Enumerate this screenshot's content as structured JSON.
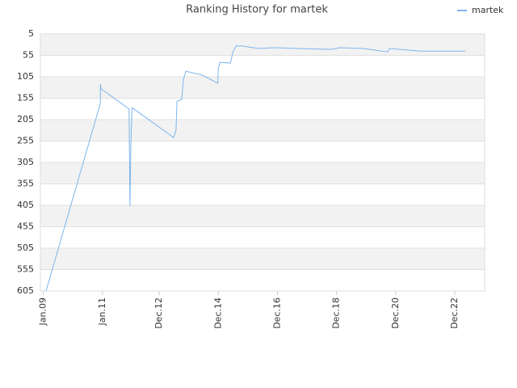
{
  "chart_data": {
    "type": "line",
    "title": "Ranking History for martek",
    "x": [
      2009.09,
      2010.93,
      2010.93,
      2010.95,
      2011.9,
      2011.93,
      2011.96,
      2012.0,
      2013.41,
      2013.49,
      2013.52,
      2013.68,
      2013.74,
      2013.82,
      2014.37,
      2014.9,
      2014.92,
      2014.98,
      2015.33,
      2015.41,
      2015.52,
      2015.73,
      2016.28,
      2016.82,
      2017.64,
      2018.74,
      2019.01,
      2019.83,
      2020.65,
      2020.71,
      2021.75,
      2023.28
    ],
    "series": [
      {
        "name": "martek",
        "color": "#7cb5ec",
        "values": [
          605,
          167,
          122,
          133,
          180,
          407,
          265,
          177,
          247,
          228,
          162,
          158,
          111,
          92,
          101,
          120,
          84,
          71,
          73,
          48,
          33,
          33,
          39,
          37,
          39,
          41,
          37,
          39,
          47,
          39,
          45,
          45
        ]
      }
    ],
    "xlim": [
      2008.9,
      2023.93
    ],
    "xticks": [
      {
        "value": 2009.0,
        "label": "Jan.09"
      },
      {
        "value": 2011.0,
        "label": "Jan.11"
      },
      {
        "value": 2012.92,
        "label": "Dec.12"
      },
      {
        "value": 2014.92,
        "label": "Dec.14"
      },
      {
        "value": 2016.92,
        "label": "Dec.16"
      },
      {
        "value": 2018.92,
        "label": "Dec.18"
      },
      {
        "value": 2020.92,
        "label": "Dec.20"
      },
      {
        "value": 2022.92,
        "label": "Dec.22"
      }
    ],
    "ylim": [
      5,
      605
    ],
    "yticks": [
      5,
      55,
      105,
      155,
      205,
      255,
      305,
      355,
      405,
      455,
      505,
      555,
      605
    ],
    "y_inverted": true,
    "grid": true,
    "legend": "top-right"
  }
}
